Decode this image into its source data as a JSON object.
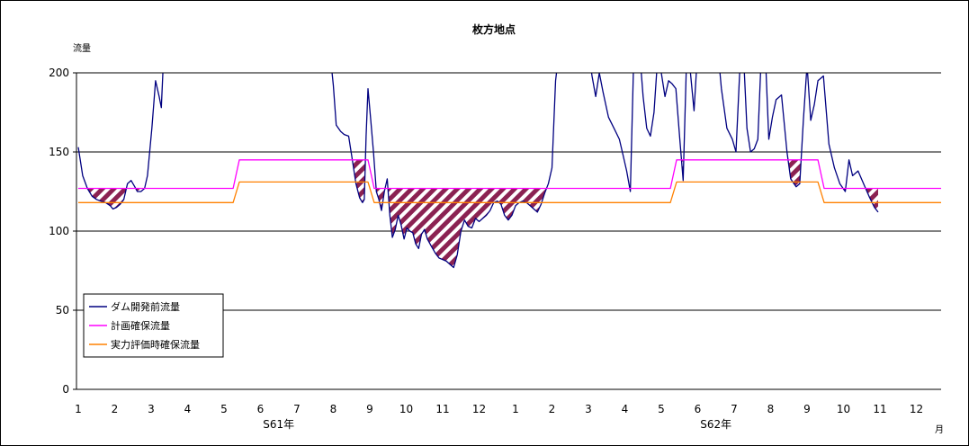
{
  "chart_data": {
    "type": "line",
    "title": "枚方地点",
    "ylabel": "流量",
    "xlabel_unit": "月",
    "ylim": [
      0,
      200
    ],
    "yticks": [
      0,
      50,
      100,
      150,
      200
    ],
    "grid_lines_at": [
      50,
      100,
      150
    ],
    "month_labels": [
      "1",
      "2",
      "3",
      "4",
      "5",
      "6",
      "7",
      "8",
      "9",
      "10",
      "11",
      "12",
      "1",
      "2",
      "3",
      "4",
      "5",
      "6",
      "7",
      "8",
      "9",
      "10",
      "11",
      "12"
    ],
    "year_labels": [
      {
        "label": "S61年",
        "month_index": 5.5
      },
      {
        "label": "S62年",
        "month_index": 17.5
      }
    ],
    "x_range_months": [
      0,
      23.85
    ],
    "legend_position": "bottom-left",
    "series": [
      {
        "name": "ダム開発前流量",
        "color": "#000080",
        "points": [
          [
            0.0,
            153
          ],
          [
            0.12,
            135
          ],
          [
            0.25,
            127
          ],
          [
            0.38,
            122
          ],
          [
            0.5,
            120
          ],
          [
            0.62,
            119
          ],
          [
            0.75,
            118
          ],
          [
            0.88,
            116
          ],
          [
            0.95,
            114
          ],
          [
            1.05,
            115
          ],
          [
            1.15,
            117
          ],
          [
            1.25,
            120
          ],
          [
            1.35,
            130
          ],
          [
            1.45,
            132
          ],
          [
            1.55,
            128
          ],
          [
            1.62,
            125
          ],
          [
            1.72,
            125
          ],
          [
            1.82,
            127
          ],
          [
            1.9,
            135
          ],
          [
            2.02,
            165
          ],
          [
            2.12,
            195
          ],
          [
            2.22,
            185
          ],
          [
            2.28,
            178
          ],
          [
            2.35,
            215
          ],
          [
            6.9,
            215
          ],
          [
            7.0,
            192
          ],
          [
            7.08,
            167
          ],
          [
            7.2,
            163
          ],
          [
            7.3,
            161
          ],
          [
            7.42,
            160
          ],
          [
            7.52,
            145
          ],
          [
            7.62,
            130
          ],
          [
            7.72,
            121
          ],
          [
            7.8,
            118
          ],
          [
            7.85,
            120
          ],
          [
            7.9,
            160
          ],
          [
            7.95,
            190
          ],
          [
            8.02,
            172
          ],
          [
            8.1,
            150
          ],
          [
            8.18,
            125
          ],
          [
            8.25,
            120
          ],
          [
            8.32,
            113
          ],
          [
            8.4,
            125
          ],
          [
            8.48,
            133
          ],
          [
            8.55,
            110
          ],
          [
            8.62,
            96
          ],
          [
            8.7,
            101
          ],
          [
            8.78,
            110
          ],
          [
            8.86,
            104
          ],
          [
            8.94,
            95
          ],
          [
            9.02,
            102
          ],
          [
            9.1,
            100
          ],
          [
            9.18,
            99
          ],
          [
            9.26,
            92
          ],
          [
            9.34,
            89
          ],
          [
            9.42,
            98
          ],
          [
            9.5,
            101
          ],
          [
            9.58,
            95
          ],
          [
            9.7,
            90
          ],
          [
            9.8,
            86
          ],
          [
            9.9,
            83
          ],
          [
            10.0,
            82
          ],
          [
            10.1,
            81
          ],
          [
            10.2,
            79
          ],
          [
            10.3,
            77
          ],
          [
            10.4,
            85
          ],
          [
            10.5,
            100
          ],
          [
            10.6,
            107
          ],
          [
            10.7,
            103
          ],
          [
            10.8,
            102
          ],
          [
            10.9,
            108
          ],
          [
            11.0,
            106
          ],
          [
            11.1,
            108
          ],
          [
            11.2,
            110
          ],
          [
            11.3,
            113
          ],
          [
            11.4,
            118
          ],
          [
            11.5,
            119
          ],
          [
            11.6,
            117
          ],
          [
            11.7,
            110
          ],
          [
            11.8,
            107
          ],
          [
            11.9,
            110
          ],
          [
            12.0,
            116
          ],
          [
            12.1,
            118
          ],
          [
            12.2,
            119
          ],
          [
            12.3,
            118
          ],
          [
            12.4,
            116
          ],
          [
            12.5,
            114
          ],
          [
            12.6,
            112
          ],
          [
            12.7,
            117
          ],
          [
            12.8,
            124
          ],
          [
            12.9,
            130
          ],
          [
            13.0,
            140
          ],
          [
            13.1,
            195
          ],
          [
            13.2,
            215
          ],
          [
            14.0,
            215
          ],
          [
            14.1,
            198
          ],
          [
            14.2,
            185
          ],
          [
            14.3,
            200
          ],
          [
            14.4,
            188
          ],
          [
            14.55,
            172
          ],
          [
            14.7,
            165
          ],
          [
            14.85,
            158
          ],
          [
            14.95,
            148
          ],
          [
            15.05,
            138
          ],
          [
            15.15,
            125
          ],
          [
            15.25,
            215
          ],
          [
            15.4,
            215
          ],
          [
            15.5,
            185
          ],
          [
            15.6,
            165
          ],
          [
            15.7,
            160
          ],
          [
            15.8,
            175
          ],
          [
            15.9,
            210
          ],
          [
            16.0,
            200
          ],
          [
            16.1,
            185
          ],
          [
            16.2,
            195
          ],
          [
            16.3,
            193
          ],
          [
            16.4,
            190
          ],
          [
            16.5,
            160
          ],
          [
            16.6,
            132
          ],
          [
            16.7,
            215
          ],
          [
            16.8,
            200
          ],
          [
            16.9,
            176
          ],
          [
            17.0,
            215
          ],
          [
            17.55,
            215
          ],
          [
            17.65,
            190
          ],
          [
            17.8,
            165
          ],
          [
            17.95,
            158
          ],
          [
            18.05,
            150
          ],
          [
            18.15,
            200
          ],
          [
            18.25,
            215
          ],
          [
            18.35,
            165
          ],
          [
            18.45,
            150
          ],
          [
            18.55,
            152
          ],
          [
            18.65,
            158
          ],
          [
            18.75,
            215
          ],
          [
            18.85,
            215
          ],
          [
            18.95,
            158
          ],
          [
            19.05,
            172
          ],
          [
            19.15,
            183
          ],
          [
            19.3,
            186
          ],
          [
            19.45,
            150
          ],
          [
            19.55,
            133
          ],
          [
            19.7,
            128
          ],
          [
            19.8,
            130
          ],
          [
            19.9,
            170
          ],
          [
            20.0,
            205
          ],
          [
            20.1,
            170
          ],
          [
            20.2,
            180
          ],
          [
            20.3,
            195
          ],
          [
            20.45,
            198
          ],
          [
            20.6,
            155
          ],
          [
            20.75,
            140
          ],
          [
            20.9,
            130
          ],
          [
            21.05,
            125
          ],
          [
            21.15,
            145
          ],
          [
            21.25,
            135
          ],
          [
            21.4,
            138
          ],
          [
            21.55,
            130
          ],
          [
            21.7,
            122
          ],
          [
            21.85,
            115
          ],
          [
            21.95,
            112
          ]
        ]
      },
      {
        "name": "計画確保流量",
        "color": "#ff00ff",
        "points": [
          [
            0.0,
            127
          ],
          [
            4.25,
            127
          ],
          [
            4.42,
            145
          ],
          [
            7.95,
            145
          ],
          [
            8.12,
            127
          ],
          [
            16.25,
            127
          ],
          [
            16.42,
            145
          ],
          [
            20.3,
            145
          ],
          [
            20.47,
            127
          ],
          [
            23.85,
            127
          ]
        ]
      },
      {
        "name": "実力評価時確保流量",
        "color": "#ff8000",
        "points": [
          [
            0.0,
            118
          ],
          [
            4.25,
            118
          ],
          [
            4.42,
            131
          ],
          [
            7.95,
            131
          ],
          [
            8.12,
            118
          ],
          [
            16.25,
            118
          ],
          [
            16.42,
            131
          ],
          [
            20.3,
            131
          ],
          [
            20.47,
            118
          ],
          [
            23.85,
            118
          ]
        ]
      }
    ],
    "shading": {
      "description": "hatched area where ダム開発前流量 is below 計画確保流量",
      "between": [
        "ダム開発前流量",
        "計画確保流量"
      ],
      "fill_color": "#8b2252"
    },
    "legend": [
      "ダム開発前流量",
      "計画確保流量",
      "実力評価時確保流量"
    ]
  }
}
